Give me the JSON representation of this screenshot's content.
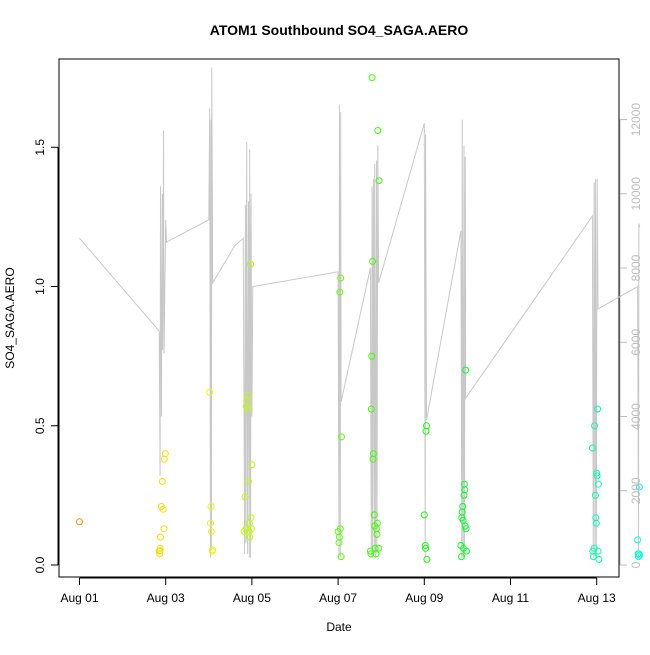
{
  "chart_data": {
    "type": "scatter",
    "title": "ATOM1 Southbound SO4_SAGA.AERO",
    "xlabel": "Date",
    "ylabel": "SO4_SAGA.AERO",
    "x_ticks": [
      "Aug 01",
      "Aug 03",
      "Aug 05",
      "Aug 07",
      "Aug 09",
      "Aug 11",
      "Aug 13"
    ],
    "x_range_days": [
      0,
      12.8
    ],
    "ylim": [
      0,
      1.8
    ],
    "y_ticks": [
      "0.0",
      "0.5",
      "1.0",
      "1.5"
    ],
    "y_right_ticks": [
      "0",
      "2000",
      "4000",
      "6000",
      "8000",
      "10000",
      "12000"
    ],
    "y_right_lim": [
      -200,
      13000
    ],
    "grid": false,
    "colors": {
      "altitude_line": "#c8c8c8",
      "right_axis": "#bdbdbd",
      "frame": "#000000"
    },
    "series": [
      {
        "points": [
          [
            0.0,
            0.155
          ],
          [
            1.85,
            0.05
          ],
          [
            1.86,
            0.04
          ],
          [
            1.87,
            0.06
          ],
          [
            1.88,
            0.1
          ],
          [
            1.9,
            0.21
          ],
          [
            1.92,
            0.3
          ],
          [
            1.94,
            0.2
          ],
          [
            1.96,
            0.13
          ],
          [
            1.97,
            0.38
          ],
          [
            1.99,
            0.4
          ],
          [
            1.87,
            0.052
          ],
          [
            3.02,
            0.62
          ],
          [
            3.04,
            0.15
          ],
          [
            3.05,
            0.21
          ],
          [
            3.06,
            0.12
          ],
          [
            3.08,
            0.05
          ],
          [
            3.09,
            0.055
          ],
          [
            3.82,
            0.12
          ],
          [
            3.84,
            0.245
          ],
          [
            3.86,
            0.13
          ],
          [
            3.87,
            0.57
          ],
          [
            3.88,
            0.59
          ],
          [
            3.9,
            0.56
          ],
          [
            3.91,
            0.61
          ],
          [
            3.92,
            0.3
          ],
          [
            3.94,
            0.15
          ],
          [
            3.95,
            0.1
          ],
          [
            3.97,
            1.08
          ],
          [
            3.98,
            0.17
          ],
          [
            3.99,
            0.13
          ],
          [
            4.0,
            0.36
          ],
          [
            3.93,
            0.12
          ],
          [
            6.0,
            0.12
          ],
          [
            6.02,
            0.08
          ],
          [
            6.03,
            0.1
          ],
          [
            6.04,
            0.98
          ],
          [
            6.05,
            0.13
          ],
          [
            6.06,
            1.03
          ],
          [
            6.07,
            0.03
          ],
          [
            6.08,
            0.46
          ],
          [
            6.75,
            0.05
          ],
          [
            6.76,
            0.04
          ],
          [
            6.77,
            0.56
          ],
          [
            6.78,
            0.75
          ],
          [
            6.79,
            1.75
          ],
          [
            6.8,
            1.09
          ],
          [
            6.81,
            0.38
          ],
          [
            6.82,
            0.4
          ],
          [
            6.84,
            0.18
          ],
          [
            6.85,
            0.14
          ],
          [
            6.86,
            0.06
          ],
          [
            6.88,
            0.04
          ],
          [
            6.89,
            0.13
          ],
          [
            6.9,
            0.11
          ],
          [
            6.92,
            1.56
          ],
          [
            6.95,
            1.38
          ],
          [
            6.94,
            0.06
          ],
          [
            6.91,
            0.15
          ],
          [
            8.0,
            0.18
          ],
          [
            8.02,
            0.07
          ],
          [
            8.03,
            0.06
          ],
          [
            8.04,
            0.48
          ],
          [
            8.05,
            0.5
          ],
          [
            8.06,
            0.02
          ],
          [
            8.85,
            0.07
          ],
          [
            8.86,
            0.03
          ],
          [
            8.87,
            0.17
          ],
          [
            8.88,
            0.19
          ],
          [
            8.89,
            0.21
          ],
          [
            8.9,
            0.16
          ],
          [
            8.91,
            0.06
          ],
          [
            8.92,
            0.25
          ],
          [
            8.93,
            0.29
          ],
          [
            8.94,
            0.27
          ],
          [
            8.95,
            0.14
          ],
          [
            8.96,
            0.7
          ],
          [
            8.97,
            0.13
          ],
          [
            8.98,
            0.05
          ],
          [
            11.9,
            0.42
          ],
          [
            11.91,
            0.05
          ],
          [
            11.92,
            0.03
          ],
          [
            11.94,
            0.06
          ],
          [
            11.95,
            0.5
          ],
          [
            11.97,
            0.25
          ],
          [
            11.98,
            0.17
          ],
          [
            11.99,
            0.15
          ],
          [
            12.0,
            0.33
          ],
          [
            12.01,
            0.32
          ],
          [
            12.02,
            0.56
          ],
          [
            12.03,
            0.05
          ],
          [
            12.04,
            0.29
          ],
          [
            12.05,
            0.02
          ],
          [
            12.95,
            0.09
          ],
          [
            12.96,
            0.04
          ],
          [
            12.97,
            0.03
          ],
          [
            12.98,
            0.04
          ],
          [
            12.99,
            0.28
          ],
          [
            13.0,
            0.035
          ]
        ]
      }
    ],
    "altitude_line": [
      [
        0.0,
        8800
      ],
      [
        1.85,
        6300
      ],
      [
        1.87,
        2400
      ],
      [
        1.88,
        10200
      ],
      [
        1.9,
        4000
      ],
      [
        1.92,
        10000
      ],
      [
        1.93,
        5800
      ],
      [
        1.95,
        11700
      ],
      [
        1.96,
        5700
      ],
      [
        1.97,
        6500
      ],
      [
        2.0,
        9300
      ],
      [
        2.02,
        8700
      ],
      [
        3.0,
        9300
      ],
      [
        3.02,
        12300
      ],
      [
        3.04,
        200
      ],
      [
        3.05,
        12000
      ],
      [
        3.06,
        400
      ],
      [
        3.07,
        13400
      ],
      [
        3.09,
        7600
      ],
      [
        3.6,
        8600
      ],
      [
        3.8,
        8800
      ],
      [
        3.83,
        300
      ],
      [
        3.85,
        9700
      ],
      [
        3.86,
        600
      ],
      [
        3.88,
        11400
      ],
      [
        3.9,
        300
      ],
      [
        3.92,
        9800
      ],
      [
        3.94,
        200
      ],
      [
        3.95,
        11200
      ],
      [
        3.97,
        200
      ],
      [
        3.98,
        10000
      ],
      [
        4.0,
        4000
      ],
      [
        4.02,
        7500
      ],
      [
        6.0,
        7900
      ],
      [
        6.02,
        200
      ],
      [
        6.03,
        12400
      ],
      [
        6.05,
        200
      ],
      [
        6.06,
        12200
      ],
      [
        6.07,
        4400
      ],
      [
        6.75,
        8000
      ],
      [
        6.77,
        200
      ],
      [
        6.79,
        10200
      ],
      [
        6.8,
        200
      ],
      [
        6.82,
        10400
      ],
      [
        6.84,
        300
      ],
      [
        6.85,
        10800
      ],
      [
        6.87,
        200
      ],
      [
        6.89,
        10900
      ],
      [
        6.9,
        300
      ],
      [
        6.92,
        11300
      ],
      [
        6.94,
        7600
      ],
      [
        8.0,
        11900
      ],
      [
        8.02,
        200
      ],
      [
        8.03,
        11600
      ],
      [
        8.05,
        3900
      ],
      [
        8.85,
        9000
      ],
      [
        8.87,
        200
      ],
      [
        8.88,
        12000
      ],
      [
        8.9,
        200
      ],
      [
        8.92,
        11300
      ],
      [
        8.93,
        200
      ],
      [
        8.95,
        11000
      ],
      [
        8.96,
        4500
      ],
      [
        11.9,
        9400
      ],
      [
        11.92,
        200
      ],
      [
        11.94,
        10300
      ],
      [
        11.96,
        200
      ],
      [
        11.97,
        10400
      ],
      [
        11.99,
        200
      ],
      [
        12.01,
        10400
      ],
      [
        12.03,
        6900
      ],
      [
        12.95,
        7500
      ],
      [
        12.97,
        200
      ],
      [
        12.98,
        9200
      ],
      [
        13.0,
        9100
      ]
    ]
  }
}
